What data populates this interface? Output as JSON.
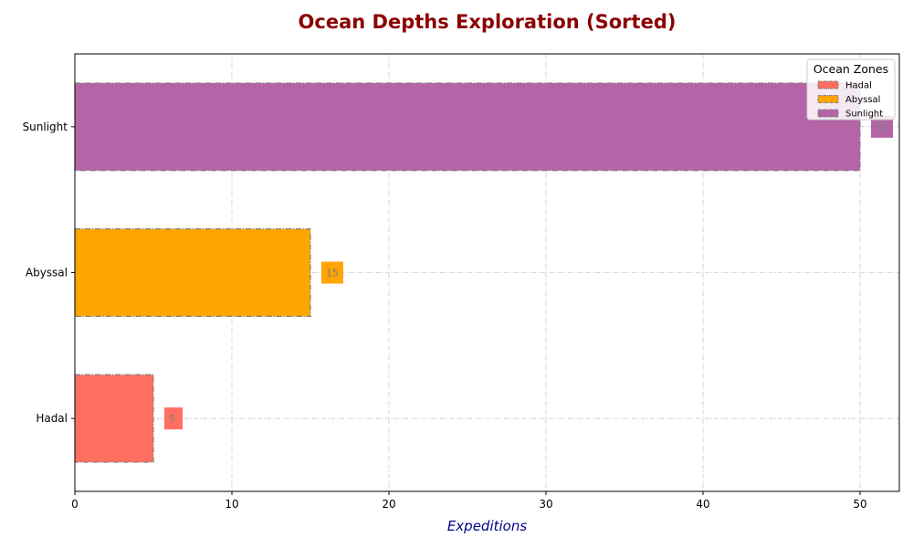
{
  "chart_data": {
    "type": "bar",
    "orientation": "horizontal",
    "title": "Ocean Depths Exploration (Sorted)",
    "xlabel": "Expeditions",
    "ylabel": "",
    "categories": [
      "Hadal",
      "Abyssal",
      "Sunlight"
    ],
    "values": [
      5,
      15,
      50
    ],
    "colors": [
      "#ff6f61",
      "#ffa500",
      "#b565a7"
    ],
    "xlim": [
      0,
      52.5
    ],
    "xticks": [
      0,
      10,
      20,
      30,
      40,
      50
    ],
    "grid": true,
    "data_labels": [
      "5",
      "15",
      "50"
    ],
    "legend": {
      "title": "Ocean Zones",
      "placement": "top-right",
      "entries": [
        "Hadal",
        "Abyssal",
        "Sunlight"
      ]
    },
    "title_color": "#8b0000",
    "xlabel_color": "#00008b",
    "label_text_color": "#808080",
    "edge_color": "#808080"
  }
}
